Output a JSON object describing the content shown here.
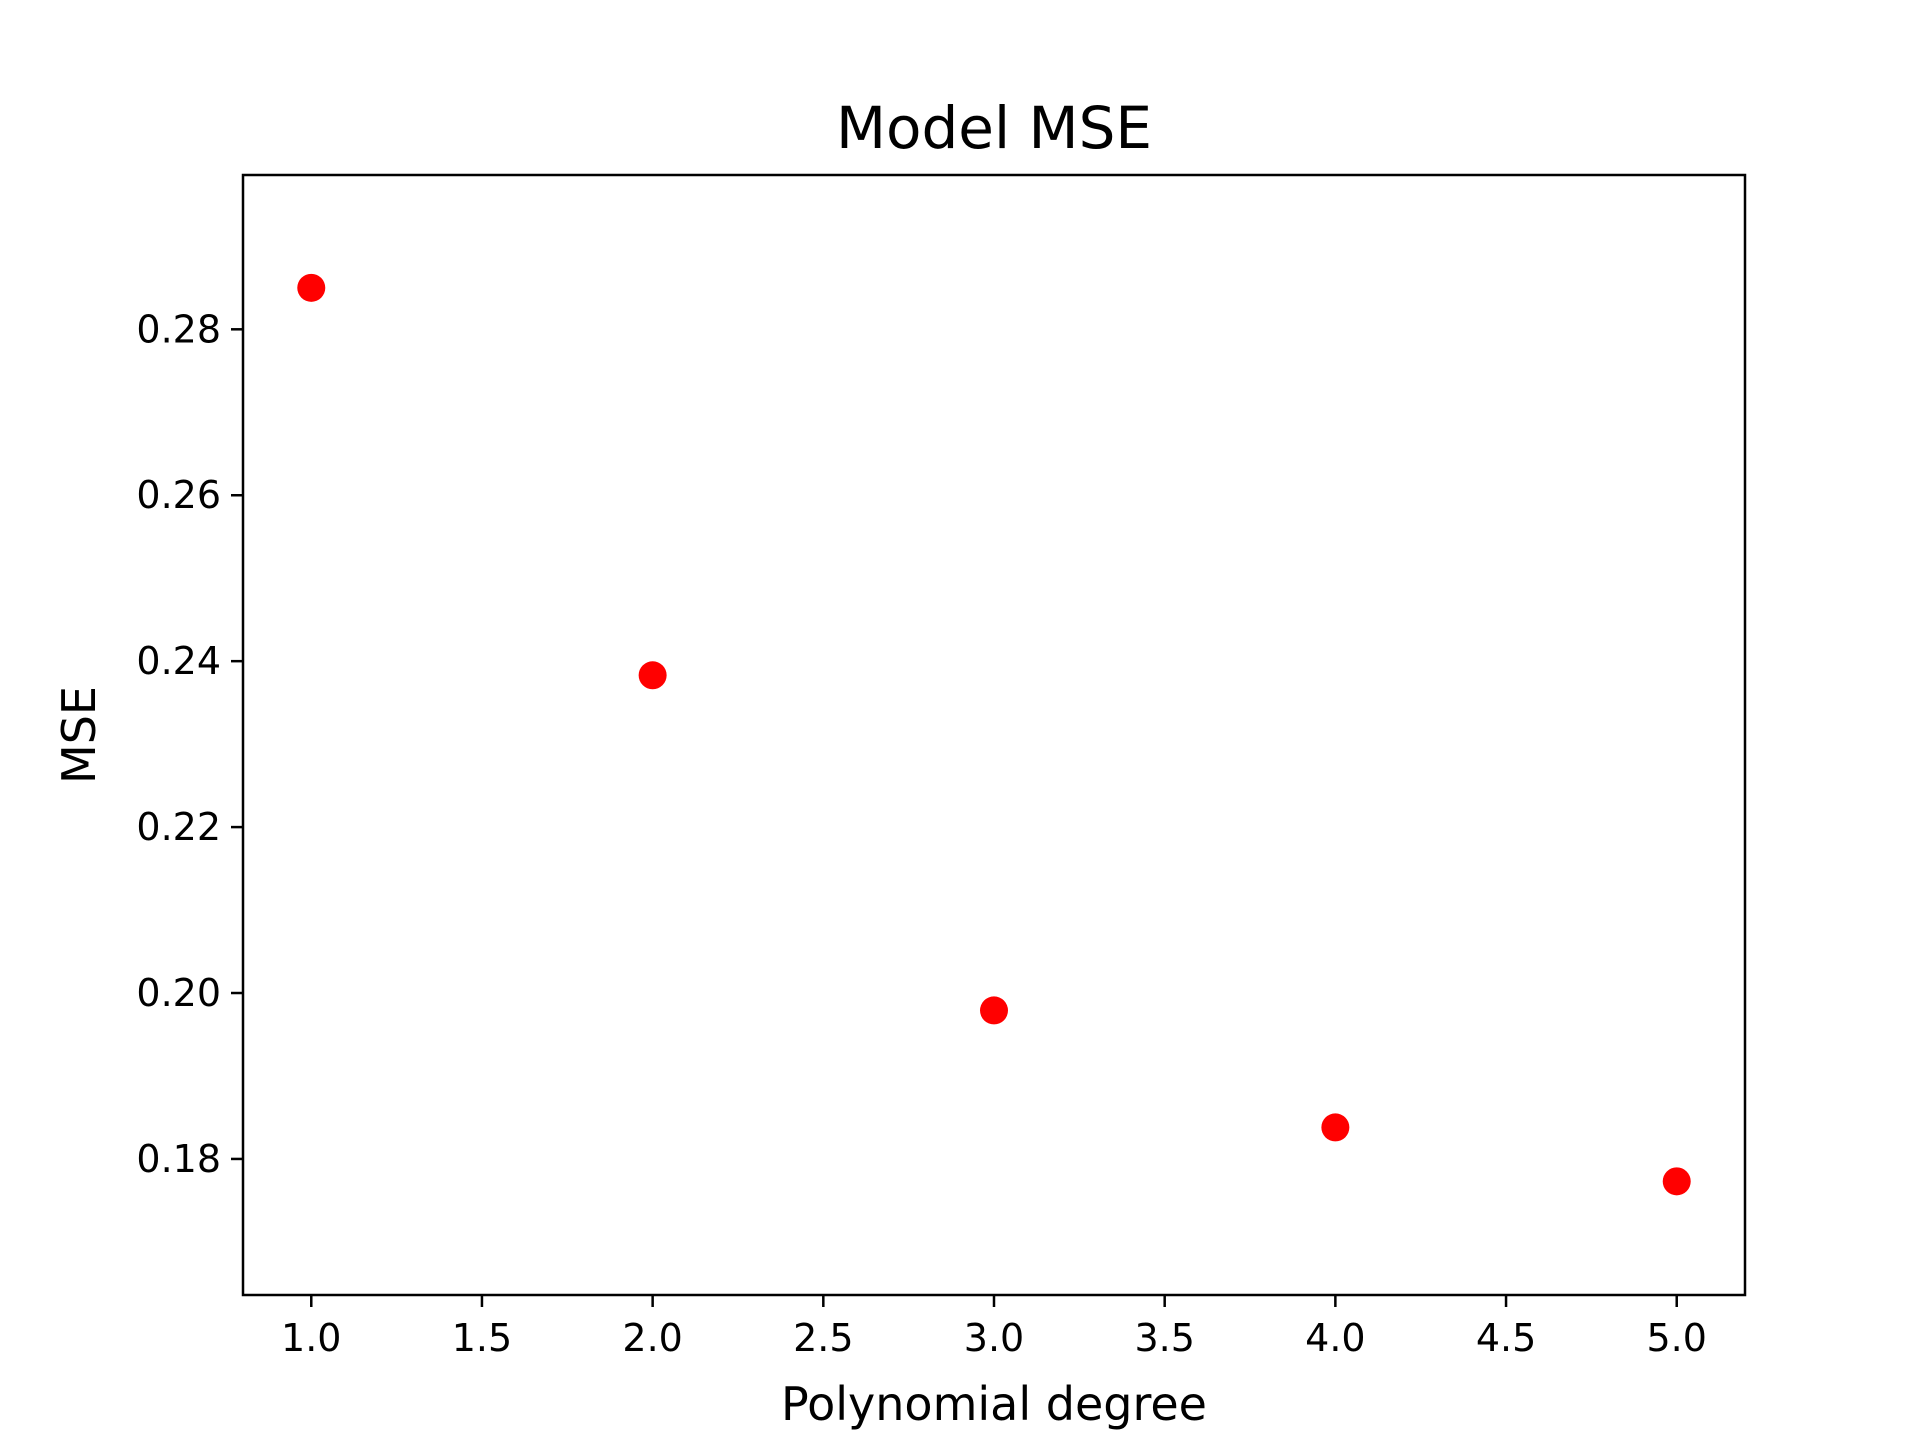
{
  "chart_data": {
    "type": "scatter",
    "title": "Model MSE",
    "xlabel": "Polynomial degree",
    "ylabel": "MSE",
    "x": [
      1,
      2,
      3,
      4,
      5
    ],
    "y": [
      0.285,
      0.2383,
      0.1979,
      0.1838,
      0.1773
    ],
    "xlim": [
      0.8,
      5.2
    ],
    "ylim": [
      0.1636,
      0.2986
    ],
    "xticks": [
      1.0,
      1.5,
      2.0,
      2.5,
      3.0,
      3.5,
      4.0,
      4.5,
      5.0
    ],
    "xtick_labels": [
      "1.0",
      "1.5",
      "2.0",
      "2.5",
      "3.0",
      "3.5",
      "4.0",
      "4.5",
      "5.0"
    ],
    "yticks": [
      0.18,
      0.2,
      0.22,
      0.24,
      0.26,
      0.28
    ],
    "ytick_labels": [
      "0.18",
      "0.20",
      "0.22",
      "0.24",
      "0.26",
      "0.28"
    ],
    "grid": false,
    "legend": "none",
    "marker_color": "#ff0000"
  }
}
